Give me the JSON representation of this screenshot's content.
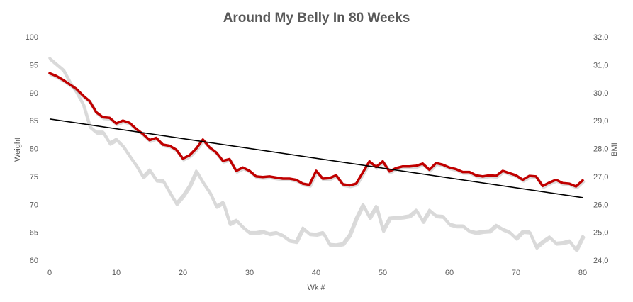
{
  "chart_data": {
    "type": "line",
    "title": "Around  My Belly In 80 Weeks",
    "xlabel": "Wk #",
    "ylabel": "Weight",
    "y2label": "BMI",
    "xlim": [
      0,
      80
    ],
    "ylim": [
      60,
      100
    ],
    "y2lim": [
      24.0,
      32.0
    ],
    "x_ticks": [
      "0",
      "10",
      "20",
      "30",
      "40",
      "50",
      "60",
      "70",
      "80"
    ],
    "y_ticks": [
      "60",
      "65",
      "70",
      "75",
      "80",
      "85",
      "90",
      "95",
      "100"
    ],
    "y2_ticks": [
      "24,0",
      "25,0",
      "26,0",
      "27,0",
      "28,0",
      "29,0",
      "30,0",
      "31,0",
      "32,0"
    ],
    "grid": false,
    "legend": "none",
    "series": [
      {
        "axis": "left",
        "color": "#c00000",
        "x": [
          0,
          1,
          2,
          3,
          4,
          5,
          6,
          7,
          8,
          9,
          10,
          11,
          12,
          13,
          14,
          15,
          16,
          17,
          18,
          19,
          20,
          21,
          22,
          23,
          24,
          25,
          26,
          27,
          28,
          29,
          30,
          31,
          32,
          33,
          34,
          35,
          36,
          37,
          38,
          39,
          40,
          41,
          42,
          43,
          44,
          45,
          46,
          47,
          48,
          49,
          50,
          51,
          52,
          53,
          54,
          55,
          56,
          57,
          58,
          59,
          60,
          61,
          62,
          63,
          64,
          65,
          66,
          67,
          68,
          69,
          70,
          71,
          72,
          73,
          74,
          75,
          76,
          77,
          78,
          79,
          80
        ],
        "values": [
          93.5,
          93,
          92.3,
          91.5,
          90.7,
          89.5,
          88.5,
          86.5,
          85.6,
          85.5,
          84.5,
          85,
          84.6,
          83.5,
          82.6,
          81.5,
          81.9,
          80.7,
          80.5,
          79.8,
          78.2,
          78.8,
          80,
          81.6,
          80.2,
          79.3,
          77.8,
          78.1,
          76,
          76.6,
          76,
          75,
          74.9,
          75,
          74.8,
          74.6,
          74.6,
          74.4,
          73.7,
          73.5,
          76,
          74.6,
          74.7,
          75.2,
          73.6,
          73.4,
          73.7,
          75.7,
          77.7,
          76.7,
          77.7,
          75.9,
          76.5,
          76.8,
          76.8,
          76.9,
          77.3,
          76.2,
          77.4,
          77.1,
          76.6,
          76.3,
          75.8,
          75.8,
          75.2,
          75,
          75.2,
          75.1,
          76,
          75.6,
          75.2,
          74.4,
          75.1,
          75,
          73.3,
          73.9,
          74.4,
          73.8,
          73.7,
          73.2,
          74.3
        ]
      },
      {
        "axis": "left",
        "color": "#d9d9d9",
        "x": [
          0,
          1,
          2,
          3,
          4,
          5,
          6,
          7,
          8,
          9,
          10,
          11,
          12,
          13,
          14,
          15,
          16,
          17,
          18,
          19,
          20,
          21,
          22,
          23,
          24,
          25,
          26,
          27,
          28,
          29,
          30,
          31,
          32,
          33,
          34,
          35,
          36,
          37,
          38,
          39,
          40,
          41,
          42,
          43,
          44,
          45,
          46,
          47,
          48,
          49,
          50,
          51,
          52,
          53,
          54,
          55,
          56,
          57,
          58,
          59,
          60,
          61,
          62,
          63,
          64,
          65,
          66,
          67,
          68,
          69,
          70,
          71,
          72,
          73,
          74,
          75,
          76,
          77,
          78,
          79,
          80
        ],
        "values": [
          96.2,
          95.2,
          94.2,
          92,
          90.2,
          88,
          84,
          83,
          83,
          81,
          81.7,
          80.5,
          78.7,
          77,
          75,
          76.2,
          74.4,
          74.3,
          72.2,
          70.2,
          71.6,
          73.4,
          76,
          74,
          72.2,
          69.7,
          70.4,
          66.6,
          67.2,
          66,
          65,
          65,
          65.2,
          64.8,
          65,
          64.5,
          63.6,
          63.4,
          65.8,
          64.8,
          64.7,
          65,
          62.9,
          62.8,
          63,
          64.6,
          67.6,
          70,
          67.7,
          69.7,
          65.4,
          67.6,
          67.7,
          67.8,
          68,
          69,
          67,
          69,
          68,
          67.9,
          66.5,
          66.2,
          66.2,
          65.3,
          65,
          65.2,
          65.3,
          66.3,
          65.6,
          65.1,
          64,
          65.2,
          65.1,
          62.4,
          63.4,
          64.2,
          63.1,
          63.2,
          63.5,
          61.9,
          64.3
        ]
      },
      {
        "axis": "left",
        "type": "trendline",
        "color": "#000000",
        "x": [
          0,
          80
        ],
        "values": [
          85.3,
          71.2
        ]
      }
    ]
  }
}
